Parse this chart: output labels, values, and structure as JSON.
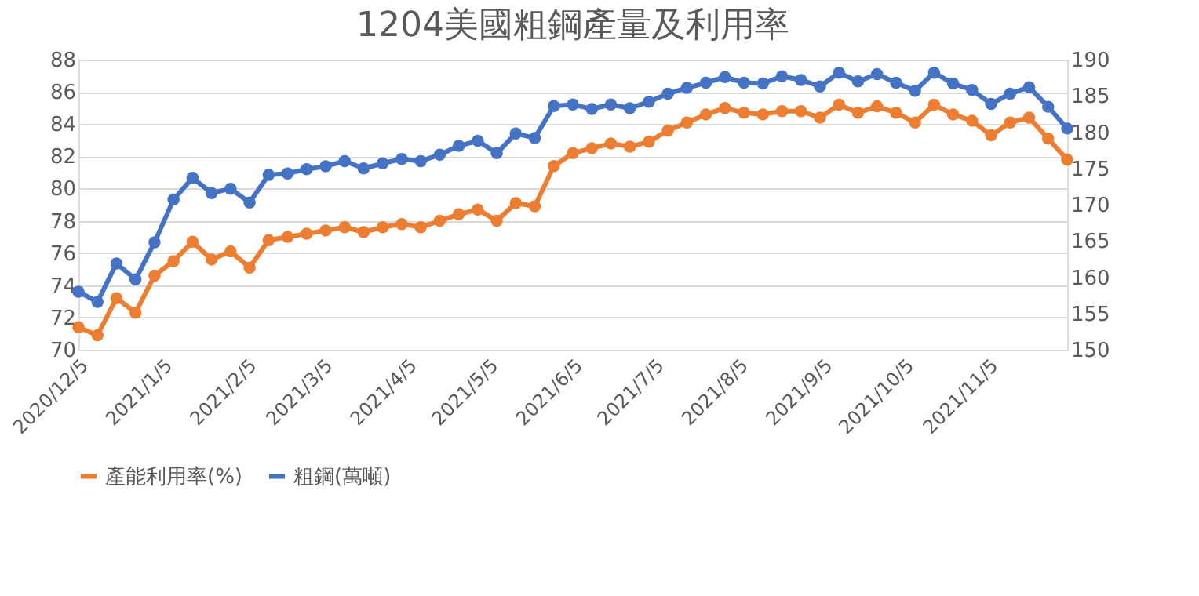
{
  "chart_data": {
    "type": "line",
    "title": "1204美國粗鋼產量及利用率",
    "x": [
      "2020-12-05",
      "2020-12-12",
      "2020-12-19",
      "2020-12-26",
      "2021-01-02",
      "2021-01-09",
      "2021-01-16",
      "2021-01-23",
      "2021-01-30",
      "2021-02-06",
      "2021-02-13",
      "2021-02-20",
      "2021-02-27",
      "2021-03-06",
      "2021-03-13",
      "2021-03-20",
      "2021-03-27",
      "2021-04-03",
      "2021-04-10",
      "2021-04-17",
      "2021-04-24",
      "2021-05-01",
      "2021-05-08",
      "2021-05-15",
      "2021-05-22",
      "2021-05-29",
      "2021-06-05",
      "2021-06-12",
      "2021-06-19",
      "2021-06-26",
      "2021-07-03",
      "2021-07-10",
      "2021-07-17",
      "2021-07-24",
      "2021-07-31",
      "2021-08-07",
      "2021-08-14",
      "2021-08-21",
      "2021-08-28",
      "2021-09-04",
      "2021-09-11",
      "2021-09-18",
      "2021-09-25",
      "2021-10-02",
      "2021-10-09",
      "2021-10-16",
      "2021-10-23",
      "2021-10-30",
      "2021-11-06",
      "2021-11-13",
      "2021-11-20",
      "2021-11-27",
      "2021-12-04"
    ],
    "series": [
      {
        "name": "產能利用率(%)",
        "color": "#ed7d31",
        "values": [
          71.4,
          70.9,
          73.2,
          72.3,
          74.6,
          75.5,
          76.7,
          75.6,
          76.1,
          75.1,
          76.8,
          77.0,
          77.2,
          77.4,
          77.6,
          77.3,
          77.6,
          77.8,
          77.6,
          78.0,
          78.4,
          78.7,
          78.0,
          79.1,
          78.9,
          81.4,
          82.2,
          82.5,
          82.8,
          82.6,
          82.9,
          83.6,
          84.1,
          84.6,
          85.0,
          84.7,
          84.6,
          84.8,
          84.8,
          84.4,
          85.2,
          84.7,
          85.1,
          84.7,
          84.1,
          85.2,
          84.6,
          84.2,
          83.3,
          84.1,
          84.4,
          83.1,
          81.8
        ]
      },
      {
        "name": "粗鋼(萬噸)",
        "color": "#4472c4",
        "axis": "y2",
        "values": [
          158.0,
          156.6,
          161.9,
          159.7,
          164.8,
          170.7,
          173.7,
          171.6,
          172.2,
          170.3,
          174.1,
          174.3,
          174.9,
          175.3,
          176.0,
          175.0,
          175.7,
          176.3,
          176.0,
          176.9,
          178.1,
          178.8,
          177.1,
          179.8,
          179.2,
          183.6,
          183.8,
          183.2,
          183.8,
          183.3,
          184.2,
          185.3,
          186.1,
          186.8,
          187.6,
          186.8,
          186.7,
          187.7,
          187.2,
          186.3,
          188.2,
          187.0,
          188.0,
          186.8,
          185.7,
          188.2,
          186.7,
          185.8,
          183.9,
          185.3,
          186.2,
          183.5,
          180.5
        ]
      }
    ],
    "xlim": [
      "2020-12-05",
      "2021-12-04"
    ],
    "xticks": [
      {
        "value": "2020-12-05",
        "label": "2020/12/5"
      },
      {
        "value": "2021-01-05",
        "label": "2021/1/5"
      },
      {
        "value": "2021-02-05",
        "label": "2021/2/5"
      },
      {
        "value": "2021-03-05",
        "label": "2021/3/5"
      },
      {
        "value": "2021-04-05",
        "label": "2021/4/5"
      },
      {
        "value": "2021-05-05",
        "label": "2021/5/5"
      },
      {
        "value": "2021-06-05",
        "label": "2021/6/5"
      },
      {
        "value": "2021-07-05",
        "label": "2021/7/5"
      },
      {
        "value": "2021-08-05",
        "label": "2021/8/5"
      },
      {
        "value": "2021-09-05",
        "label": "2021/9/5"
      },
      {
        "value": "2021-10-05",
        "label": "2021/10/5"
      },
      {
        "value": "2021-11-05",
        "label": "2021/11/5"
      }
    ],
    "ylim": [
      70,
      88
    ],
    "yticks": [
      70,
      72,
      74,
      76,
      78,
      80,
      82,
      84,
      86,
      88
    ],
    "y2lim": [
      150,
      190
    ],
    "y2ticks": [
      150,
      155,
      160,
      165,
      170,
      175,
      180,
      185,
      190
    ],
    "grid": "y",
    "legend": "bottom",
    "marker": "circle",
    "line_style": "solid"
  }
}
